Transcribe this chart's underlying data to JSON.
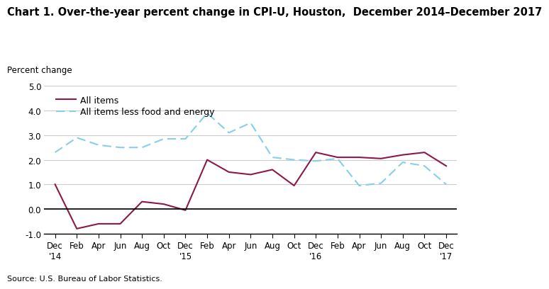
{
  "title": "Chart 1. Over-the-year percent change in CPI-U, Houston,  December 2014–December 2017",
  "ylabel": "Percent change",
  "source": "Source: U.S. Bureau of Labor Statistics.",
  "x_tick_labels": [
    "Dec\n'14",
    "Feb",
    "Apr",
    "Jun",
    "Aug",
    "Oct",
    "Dec\n'15",
    "Feb",
    "Apr",
    "Jun",
    "Aug",
    "Oct",
    "Dec\n'16",
    "Feb",
    "Apr",
    "Jun",
    "Aug",
    "Oct",
    "Dec\n'17"
  ],
  "all_items": [
    1.0,
    -0.8,
    -0.6,
    -0.6,
    0.3,
    0.2,
    -0.05,
    2.0,
    1.5,
    1.4,
    1.6,
    0.95,
    2.3,
    2.1,
    2.1,
    2.05,
    2.2,
    2.3,
    1.75
  ],
  "all_items_less": [
    2.3,
    2.9,
    2.6,
    2.5,
    2.5,
    2.85,
    2.85,
    3.9,
    3.1,
    3.5,
    2.1,
    2.0,
    1.95,
    2.05,
    0.95,
    1.05,
    1.9,
    1.75,
    1.0
  ],
  "all_items_color": "#8B1A4A",
  "all_items_less_color": "#87CEEB",
  "ylim": [
    -1.0,
    5.0
  ],
  "yticks": [
    -1.0,
    0.0,
    1.0,
    2.0,
    3.0,
    4.0,
    5.0
  ],
  "background_color": "#ffffff",
  "grid_color": "#cccccc",
  "title_fontsize": 10.5,
  "legend_fontsize": 9,
  "tick_fontsize": 8.5,
  "source_fontsize": 8
}
